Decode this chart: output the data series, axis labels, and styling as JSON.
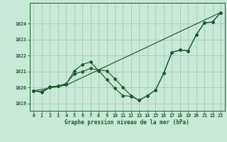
{
  "background_color": "#c8e8d8",
  "grid_color": "#a8c8b8",
  "line_color": "#1a5c2a",
  "xlabel": "Graphe pression niveau de la mer (hPa)",
  "xlim": [
    -0.5,
    23.5
  ],
  "ylim": [
    1018.55,
    1025.3
  ],
  "yticks": [
    1019,
    1020,
    1021,
    1022,
    1023,
    1024
  ],
  "xticks": [
    0,
    1,
    2,
    3,
    4,
    5,
    6,
    7,
    8,
    9,
    10,
    11,
    12,
    13,
    14,
    15,
    16,
    17,
    18,
    19,
    20,
    21,
    22,
    23
  ],
  "line1_x": [
    0,
    1,
    2,
    3,
    4,
    5,
    6,
    7,
    8,
    9,
    10,
    11,
    12,
    13,
    14,
    15,
    16,
    17,
    18,
    19,
    20,
    21,
    22,
    23
  ],
  "line1_y": [
    1019.8,
    1019.7,
    1020.0,
    1020.1,
    1020.2,
    1021.05,
    1021.45,
    1021.6,
    1021.05,
    1020.5,
    1019.95,
    1019.5,
    1019.45,
    1019.2,
    1019.5,
    1019.85,
    1020.9,
    1022.2,
    1022.35,
    1022.3,
    1023.3,
    1024.05,
    1024.1,
    1024.7
  ],
  "line2_x": [
    0,
    1,
    2,
    3,
    4,
    5,
    6,
    7,
    8,
    9,
    10,
    11,
    12,
    13,
    14,
    15,
    16,
    17,
    18,
    19,
    20,
    21,
    22,
    23
  ],
  "line2_y": [
    1019.8,
    1019.75,
    1020.05,
    1020.1,
    1020.25,
    1020.85,
    1021.0,
    1021.2,
    1021.1,
    1021.05,
    1020.55,
    1020.0,
    1019.5,
    1019.2,
    1019.5,
    1019.85,
    1020.9,
    1022.2,
    1022.35,
    1022.3,
    1023.3,
    1024.05,
    1024.1,
    1024.7
  ],
  "line3_x": [
    0,
    4,
    23
  ],
  "line3_y": [
    1019.8,
    1020.15,
    1024.7
  ],
  "figsize": [
    3.2,
    2.0
  ],
  "dpi": 100
}
